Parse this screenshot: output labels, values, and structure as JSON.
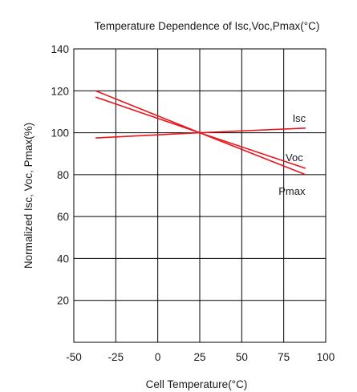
{
  "chart_data": {
    "type": "line",
    "title": "Temperature Dependence of Isc,Voc,Pmax(°C)",
    "xlabel": "Cell Temperature(°C)",
    "ylabel": "Normalized Isc, Voc, Pmax(%)",
    "xlim": [
      -50,
      100
    ],
    "ylim": [
      0,
      140
    ],
    "x_ticks": [
      "-50",
      "-25",
      "0",
      "25",
      "50",
      "75",
      "100"
    ],
    "y_ticks": [
      "20",
      "40",
      "60",
      "80",
      "100",
      "120",
      "140"
    ],
    "grid": true,
    "series": [
      {
        "name": "Isc",
        "x": [
          -37,
          25,
          88
        ],
        "y": [
          97.5,
          100,
          102.2
        ],
        "color": "#e8151b"
      },
      {
        "name": "Voc",
        "x": [
          -37,
          25,
          88
        ],
        "y": [
          117,
          100,
          83
        ],
        "color": "#e8151b"
      },
      {
        "name": "Pmax",
        "x": [
          -37,
          25,
          88
        ],
        "y": [
          120,
          100,
          80
        ],
        "color": "#e8151b"
      }
    ]
  }
}
